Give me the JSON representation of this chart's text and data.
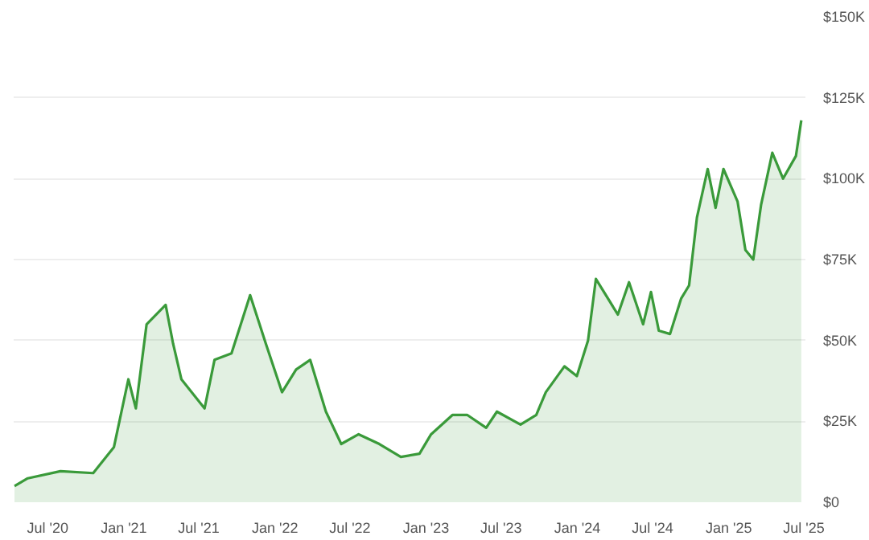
{
  "chart_data": {
    "type": "area",
    "color": "#3a9a3a",
    "x": [
      "2020-04-12",
      "2020-05-14",
      "2020-08-01",
      "2020-10-19",
      "2020-12-08",
      "2021-01-12",
      "2021-01-30",
      "2021-02-25",
      "2021-04-12",
      "2021-04-30",
      "2021-05-20",
      "2021-07-15",
      "2021-08-08",
      "2021-09-18",
      "2021-11-02",
      "2021-12-10",
      "2022-01-18",
      "2022-02-21",
      "2022-03-27",
      "2022-05-04",
      "2022-06-10",
      "2022-07-22",
      "2022-09-10",
      "2022-11-01",
      "2022-12-16",
      "2023-01-13",
      "2023-03-06",
      "2023-04-10",
      "2023-05-26",
      "2023-06-21",
      "2023-08-17",
      "2023-09-24",
      "2023-10-17",
      "2023-12-01",
      "2023-12-31",
      "2024-01-27",
      "2024-02-15",
      "2024-04-08",
      "2024-05-05",
      "2024-06-08",
      "2024-06-27",
      "2024-07-16",
      "2024-08-12",
      "2024-09-08",
      "2024-09-27",
      "2024-10-16",
      "2024-11-11",
      "2024-11-30",
      "2024-12-19",
      "2025-01-22",
      "2025-02-10",
      "2025-03-01",
      "2025-03-20",
      "2025-04-16",
      "2025-05-12",
      "2025-06-12",
      "2025-06-25"
    ],
    "values": [
      5000,
      7400,
      9600,
      9000,
      17000,
      38000,
      29000,
      55000,
      61000,
      49000,
      38000,
      29000,
      44000,
      46000,
      64000,
      49000,
      34000,
      41000,
      44000,
      28000,
      18000,
      21000,
      18000,
      14000,
      15000,
      21000,
      27000,
      27000,
      23000,
      28000,
      24000,
      27000,
      34000,
      42000,
      39000,
      50000,
      69000,
      58000,
      68000,
      55000,
      65000,
      53000,
      52000,
      63000,
      67000,
      88000,
      103000,
      91000,
      103000,
      93000,
      78000,
      75000,
      92000,
      108000,
      100000,
      107000,
      118000
    ],
    "xlim": [
      "2020-04-10",
      "2025-07-05"
    ],
    "xticks": [
      {
        "value": "2020-07-01",
        "label": "Jul '20"
      },
      {
        "value": "2021-01-01",
        "label": "Jan '21"
      },
      {
        "value": "2021-07-01",
        "label": "Jul '21"
      },
      {
        "value": "2022-01-01",
        "label": "Jan '22"
      },
      {
        "value": "2022-07-01",
        "label": "Jul '22"
      },
      {
        "value": "2023-01-01",
        "label": "Jan '23"
      },
      {
        "value": "2023-07-01",
        "label": "Jul '23"
      },
      {
        "value": "2024-01-01",
        "label": "Jan '24"
      },
      {
        "value": "2024-07-01",
        "label": "Jul '24"
      },
      {
        "value": "2025-01-01",
        "label": "Jan '25"
      },
      {
        "value": "2025-07-01",
        "label": "Jul '25"
      }
    ],
    "ylim": [
      0,
      150000
    ],
    "yticks": [
      {
        "value": 0,
        "label": "$0"
      },
      {
        "value": 25000,
        "label": "$25K"
      },
      {
        "value": 50000,
        "label": "$50K"
      },
      {
        "value": 75000,
        "label": "$75K"
      },
      {
        "value": 100000,
        "label": "$100K"
      },
      {
        "value": 125000,
        "label": "$125K"
      },
      {
        "value": 150000,
        "label": "$150K"
      }
    ],
    "grid": "y"
  }
}
